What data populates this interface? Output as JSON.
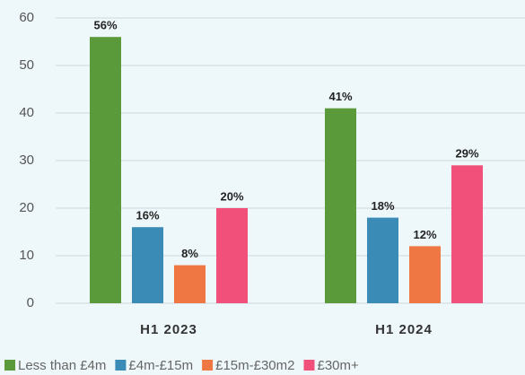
{
  "chart_data": {
    "type": "bar",
    "categories": [
      "H1 2023",
      "H1 2024"
    ],
    "series": [
      {
        "name": "Less than £4m",
        "color": "#5b9a3a",
        "values": [
          56,
          41
        ],
        "value_labels": [
          "56%",
          "41%"
        ]
      },
      {
        "name": "£4m-£15m",
        "color": "#3a8bb5",
        "values": [
          16,
          18
        ],
        "value_labels": [
          "16%",
          "18%"
        ]
      },
      {
        "name": "£15m-£30m2",
        "color": "#ee7744",
        "values": [
          8,
          12
        ],
        "value_labels": [
          "8%",
          "12%"
        ]
      },
      {
        "name": "£30m+",
        "color": "#f0507a",
        "values": [
          20,
          29
        ],
        "value_labels": [
          "20%",
          "29%"
        ]
      }
    ],
    "ylim": [
      0,
      60
    ],
    "yticks": [
      0,
      10,
      20,
      30,
      40,
      50,
      60
    ],
    "grid": true,
    "legend": "bottom"
  }
}
